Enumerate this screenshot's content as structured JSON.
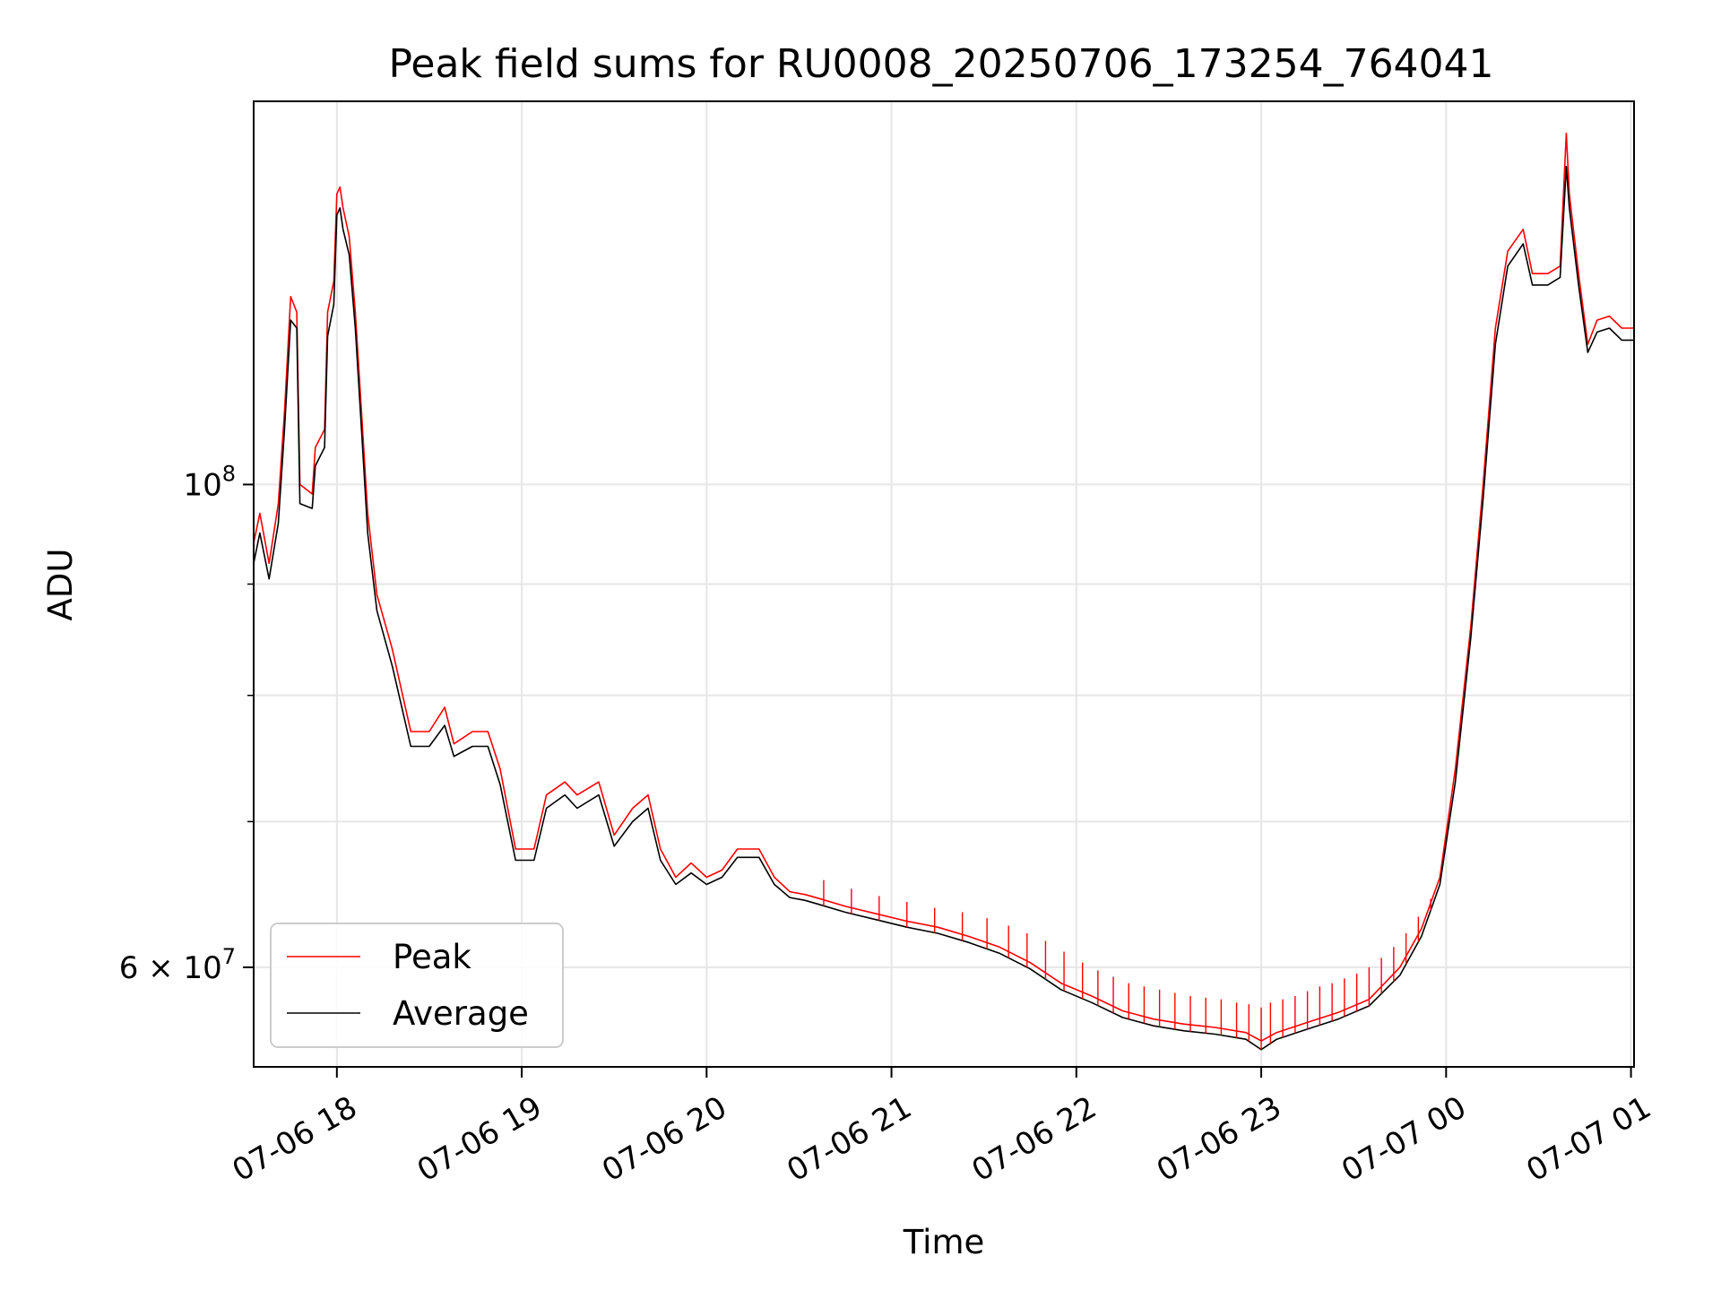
{
  "chart_data": {
    "type": "line",
    "title": "Peak field sums for RU0008_20250706_173254_764041",
    "xlabel": "Time",
    "ylabel": "ADU",
    "y_scale": "log",
    "xlim": [
      "2025-07-06 17:33",
      "2025-07-07 01:01"
    ],
    "ylim": [
      54000000,
      150000000
    ],
    "grid": true,
    "legend_position": "lower-left",
    "x_ticks": [
      {
        "value": "2025-07-06 18:00",
        "label": "07-06 18"
      },
      {
        "value": "2025-07-06 19:00",
        "label": "07-06 19"
      },
      {
        "value": "2025-07-06 20:00",
        "label": "07-06 20"
      },
      {
        "value": "2025-07-06 21:00",
        "label": "07-06 21"
      },
      {
        "value": "2025-07-06 22:00",
        "label": "07-06 22"
      },
      {
        "value": "2025-07-06 23:00",
        "label": "07-06 23"
      },
      {
        "value": "2025-07-07 00:00",
        "label": "07-07 00"
      },
      {
        "value": "2025-07-07 01:00",
        "label": "07-07 01"
      }
    ],
    "y_major_ticks": [
      {
        "value": 60000000,
        "label": "6 × 10",
        "exp": "7"
      },
      {
        "value": 100000000,
        "label": "10",
        "exp": "8"
      }
    ],
    "y_minor_ticks": [
      70000000,
      80000000,
      90000000
    ],
    "series": [
      {
        "name": "Peak",
        "color": "#ff0000",
        "points": [
          [
            "2025-07-06 17:33",
            94000000
          ],
          [
            "2025-07-06 17:35",
            97000000
          ],
          [
            "2025-07-06 17:38",
            92000000
          ],
          [
            "2025-07-06 17:41",
            98000000
          ],
          [
            "2025-07-06 17:43",
            108000000
          ],
          [
            "2025-07-06 17:45",
            122000000
          ],
          [
            "2025-07-06 17:47",
            120000000
          ],
          [
            "2025-07-06 17:48",
            100000000
          ],
          [
            "2025-07-06 17:52",
            99000000
          ],
          [
            "2025-07-06 17:53",
            104000000
          ],
          [
            "2025-07-06 17:56",
            106000000
          ],
          [
            "2025-07-06 17:57",
            120000000
          ],
          [
            "2025-07-06 17:59",
            124000000
          ],
          [
            "2025-07-06 18:00",
            136000000
          ],
          [
            "2025-07-06 18:01",
            137000000
          ],
          [
            "2025-07-06 18:02",
            134000000
          ],
          [
            "2025-07-06 18:04",
            130000000
          ],
          [
            "2025-07-06 18:06",
            120000000
          ],
          [
            "2025-07-06 18:08",
            108000000
          ],
          [
            "2025-07-06 18:10",
            97000000
          ],
          [
            "2025-07-06 18:13",
            89000000
          ],
          [
            "2025-07-06 18:18",
            84000000
          ],
          [
            "2025-07-06 18:24",
            77000000
          ],
          [
            "2025-07-06 18:30",
            77000000
          ],
          [
            "2025-07-06 18:35",
            79000000
          ],
          [
            "2025-07-06 18:38",
            76000000
          ],
          [
            "2025-07-06 18:44",
            77000000
          ],
          [
            "2025-07-06 18:49",
            77000000
          ],
          [
            "2025-07-06 18:53",
            74000000
          ],
          [
            "2025-07-06 18:58",
            68000000
          ],
          [
            "2025-07-06 19:04",
            68000000
          ],
          [
            "2025-07-06 19:08",
            72000000
          ],
          [
            "2025-07-06 19:14",
            73000000
          ],
          [
            "2025-07-06 19:18",
            72000000
          ],
          [
            "2025-07-06 19:25",
            73000000
          ],
          [
            "2025-07-06 19:30",
            69000000
          ],
          [
            "2025-07-06 19:36",
            71000000
          ],
          [
            "2025-07-06 19:41",
            72000000
          ],
          [
            "2025-07-06 19:45",
            68000000
          ],
          [
            "2025-07-06 19:50",
            66000000
          ],
          [
            "2025-07-06 19:55",
            67000000
          ],
          [
            "2025-07-06 20:00",
            66000000
          ],
          [
            "2025-07-06 20:05",
            66500000
          ],
          [
            "2025-07-06 20:10",
            68000000
          ],
          [
            "2025-07-06 20:17",
            68000000
          ],
          [
            "2025-07-06 20:22",
            66000000
          ],
          [
            "2025-07-06 20:27",
            65000000
          ],
          [
            "2025-07-06 20:32",
            64800000
          ],
          [
            "2025-07-06 20:37",
            64500000
          ],
          [
            "2025-07-06 20:45",
            64000000
          ],
          [
            "2025-07-06 20:55",
            63500000
          ],
          [
            "2025-07-06 21:05",
            63000000
          ],
          [
            "2025-07-06 21:15",
            62600000
          ],
          [
            "2025-07-06 21:25",
            62000000
          ],
          [
            "2025-07-06 21:35",
            61300000
          ],
          [
            "2025-07-06 21:45",
            60300000
          ],
          [
            "2025-07-06 21:55",
            59000000
          ],
          [
            "2025-07-06 22:05",
            58200000
          ],
          [
            "2025-07-06 22:15",
            57300000
          ],
          [
            "2025-07-06 22:25",
            56800000
          ],
          [
            "2025-07-06 22:35",
            56500000
          ],
          [
            "2025-07-06 22:45",
            56300000
          ],
          [
            "2025-07-06 22:55",
            56000000
          ],
          [
            "2025-07-06 23:00",
            55500000
          ],
          [
            "2025-07-06 23:05",
            56000000
          ],
          [
            "2025-07-06 23:15",
            56600000
          ],
          [
            "2025-07-06 23:25",
            57200000
          ],
          [
            "2025-07-06 23:35",
            58000000
          ],
          [
            "2025-07-06 23:45",
            60000000
          ],
          [
            "2025-07-06 23:52",
            62500000
          ],
          [
            "2025-07-06 23:58",
            66000000
          ],
          [
            "2025-07-07 00:03",
            74000000
          ],
          [
            "2025-07-07 00:08",
            86000000
          ],
          [
            "2025-07-07 00:12",
            100000000
          ],
          [
            "2025-07-07 00:16",
            118000000
          ],
          [
            "2025-07-07 00:20",
            128000000
          ],
          [
            "2025-07-07 00:25",
            131000000
          ],
          [
            "2025-07-07 00:28",
            125000000
          ],
          [
            "2025-07-07 00:33",
            125000000
          ],
          [
            "2025-07-07 00:37",
            126000000
          ],
          [
            "2025-07-07 00:39",
            145000000
          ],
          [
            "2025-07-07 00:40",
            136000000
          ],
          [
            "2025-07-07 00:43",
            125000000
          ],
          [
            "2025-07-07 00:46",
            116000000
          ],
          [
            "2025-07-07 00:49",
            119000000
          ],
          [
            "2025-07-07 00:53",
            119500000
          ],
          [
            "2025-07-07 00:57",
            118000000
          ],
          [
            "2025-07-07 01:01",
            118000000
          ]
        ]
      },
      {
        "name": "Average",
        "color": "#000000",
        "points": [
          [
            "2025-07-06 17:33",
            92000000
          ],
          [
            "2025-07-06 17:35",
            95000000
          ],
          [
            "2025-07-06 17:38",
            90500000
          ],
          [
            "2025-07-06 17:41",
            96000000
          ],
          [
            "2025-07-06 17:43",
            106000000
          ],
          [
            "2025-07-06 17:45",
            119000000
          ],
          [
            "2025-07-06 17:47",
            118000000
          ],
          [
            "2025-07-06 17:48",
            98000000
          ],
          [
            "2025-07-06 17:52",
            97500000
          ],
          [
            "2025-07-06 17:53",
            102000000
          ],
          [
            "2025-07-06 17:56",
            104000000
          ],
          [
            "2025-07-06 17:57",
            117000000
          ],
          [
            "2025-07-06 17:59",
            121000000
          ],
          [
            "2025-07-06 18:00",
            133000000
          ],
          [
            "2025-07-06 18:01",
            134000000
          ],
          [
            "2025-07-06 18:02",
            131000000
          ],
          [
            "2025-07-06 18:04",
            127500000
          ],
          [
            "2025-07-06 18:06",
            118000000
          ],
          [
            "2025-07-06 18:08",
            106000000
          ],
          [
            "2025-07-06 18:10",
            95000000
          ],
          [
            "2025-07-06 18:13",
            87500000
          ],
          [
            "2025-07-06 18:18",
            82500000
          ],
          [
            "2025-07-06 18:24",
            75800000
          ],
          [
            "2025-07-06 18:30",
            75800000
          ],
          [
            "2025-07-06 18:35",
            77500000
          ],
          [
            "2025-07-06 18:38",
            75000000
          ],
          [
            "2025-07-06 18:44",
            75800000
          ],
          [
            "2025-07-06 18:49",
            75800000
          ],
          [
            "2025-07-06 18:53",
            72800000
          ],
          [
            "2025-07-06 18:58",
            67200000
          ],
          [
            "2025-07-06 19:04",
            67200000
          ],
          [
            "2025-07-06 19:08",
            71000000
          ],
          [
            "2025-07-06 19:14",
            72000000
          ],
          [
            "2025-07-06 19:18",
            71000000
          ],
          [
            "2025-07-06 19:25",
            72000000
          ],
          [
            "2025-07-06 19:30",
            68200000
          ],
          [
            "2025-07-06 19:36",
            70000000
          ],
          [
            "2025-07-06 19:41",
            71000000
          ],
          [
            "2025-07-06 19:45",
            67200000
          ],
          [
            "2025-07-06 19:50",
            65500000
          ],
          [
            "2025-07-06 19:55",
            66300000
          ],
          [
            "2025-07-06 20:00",
            65500000
          ],
          [
            "2025-07-06 20:05",
            66000000
          ],
          [
            "2025-07-06 20:10",
            67400000
          ],
          [
            "2025-07-06 20:17",
            67400000
          ],
          [
            "2025-07-06 20:22",
            65500000
          ],
          [
            "2025-07-06 20:27",
            64600000
          ],
          [
            "2025-07-06 20:32",
            64400000
          ],
          [
            "2025-07-06 20:37",
            64100000
          ],
          [
            "2025-07-06 20:45",
            63600000
          ],
          [
            "2025-07-06 20:55",
            63100000
          ],
          [
            "2025-07-06 21:05",
            62600000
          ],
          [
            "2025-07-06 21:15",
            62200000
          ],
          [
            "2025-07-06 21:25",
            61600000
          ],
          [
            "2025-07-06 21:35",
            60900000
          ],
          [
            "2025-07-06 21:45",
            59900000
          ],
          [
            "2025-07-06 21:55",
            58600000
          ],
          [
            "2025-07-06 22:05",
            57800000
          ],
          [
            "2025-07-06 22:15",
            56900000
          ],
          [
            "2025-07-06 22:25",
            56400000
          ],
          [
            "2025-07-06 22:35",
            56100000
          ],
          [
            "2025-07-06 22:45",
            55900000
          ],
          [
            "2025-07-06 22:55",
            55600000
          ],
          [
            "2025-07-06 23:00",
            55000000
          ],
          [
            "2025-07-06 23:05",
            55600000
          ],
          [
            "2025-07-06 23:15",
            56200000
          ],
          [
            "2025-07-06 23:25",
            56800000
          ],
          [
            "2025-07-06 23:35",
            57600000
          ],
          [
            "2025-07-06 23:45",
            59500000
          ],
          [
            "2025-07-06 23:52",
            62000000
          ],
          [
            "2025-07-06 23:58",
            65500000
          ],
          [
            "2025-07-07 00:03",
            73000000
          ],
          [
            "2025-07-07 00:08",
            85000000
          ],
          [
            "2025-07-07 00:12",
            98500000
          ],
          [
            "2025-07-07 00:16",
            116000000
          ],
          [
            "2025-07-07 00:20",
            126000000
          ],
          [
            "2025-07-07 00:25",
            129000000
          ],
          [
            "2025-07-07 00:28",
            123500000
          ],
          [
            "2025-07-07 00:33",
            123500000
          ],
          [
            "2025-07-07 00:37",
            124500000
          ],
          [
            "2025-07-07 00:39",
            140000000
          ],
          [
            "2025-07-07 00:40",
            134000000
          ],
          [
            "2025-07-07 00:43",
            123500000
          ],
          [
            "2025-07-07 00:46",
            115000000
          ],
          [
            "2025-07-07 00:49",
            117500000
          ],
          [
            "2025-07-07 00:53",
            118000000
          ],
          [
            "2025-07-07 00:57",
            116500000
          ],
          [
            "2025-07-07 01:01",
            116500000
          ]
        ]
      }
    ],
    "peak_spikes": [
      [
        "2025-07-06 20:38",
        65800000
      ],
      [
        "2025-07-06 20:47",
        65200000
      ],
      [
        "2025-07-06 20:56",
        64700000
      ],
      [
        "2025-07-06 21:05",
        64300000
      ],
      [
        "2025-07-06 21:14",
        63900000
      ],
      [
        "2025-07-06 21:23",
        63600000
      ],
      [
        "2025-07-06 21:31",
        63200000
      ],
      [
        "2025-07-06 21:38",
        62700000
      ],
      [
        "2025-07-06 21:44",
        62200000
      ],
      [
        "2025-07-06 21:50",
        61700000
      ],
      [
        "2025-07-06 21:56",
        61000000
      ],
      [
        "2025-07-06 22:02",
        60300000
      ],
      [
        "2025-07-06 22:07",
        59800000
      ],
      [
        "2025-07-06 22:12",
        59400000
      ],
      [
        "2025-07-06 22:17",
        59000000
      ],
      [
        "2025-07-06 22:22",
        58800000
      ],
      [
        "2025-07-06 22:27",
        58600000
      ],
      [
        "2025-07-06 22:32",
        58400000
      ],
      [
        "2025-07-06 22:37",
        58200000
      ],
      [
        "2025-07-06 22:42",
        58100000
      ],
      [
        "2025-07-06 22:47",
        58000000
      ],
      [
        "2025-07-06 22:52",
        57800000
      ],
      [
        "2025-07-06 22:56",
        57700000
      ],
      [
        "2025-07-06 23:00",
        57500000
      ],
      [
        "2025-07-06 23:03",
        57800000
      ],
      [
        "2025-07-06 23:07",
        58000000
      ],
      [
        "2025-07-06 23:11",
        58200000
      ],
      [
        "2025-07-06 23:15",
        58500000
      ],
      [
        "2025-07-06 23:19",
        58800000
      ],
      [
        "2025-07-06 23:23",
        59000000
      ],
      [
        "2025-07-06 23:27",
        59300000
      ],
      [
        "2025-07-06 23:31",
        59600000
      ],
      [
        "2025-07-06 23:35",
        60000000
      ],
      [
        "2025-07-06 23:39",
        60600000
      ],
      [
        "2025-07-06 23:43",
        61300000
      ],
      [
        "2025-07-06 23:47",
        62200000
      ],
      [
        "2025-07-06 23:51",
        63300000
      ],
      [
        "2025-07-06 23:55",
        64500000
      ]
    ]
  }
}
